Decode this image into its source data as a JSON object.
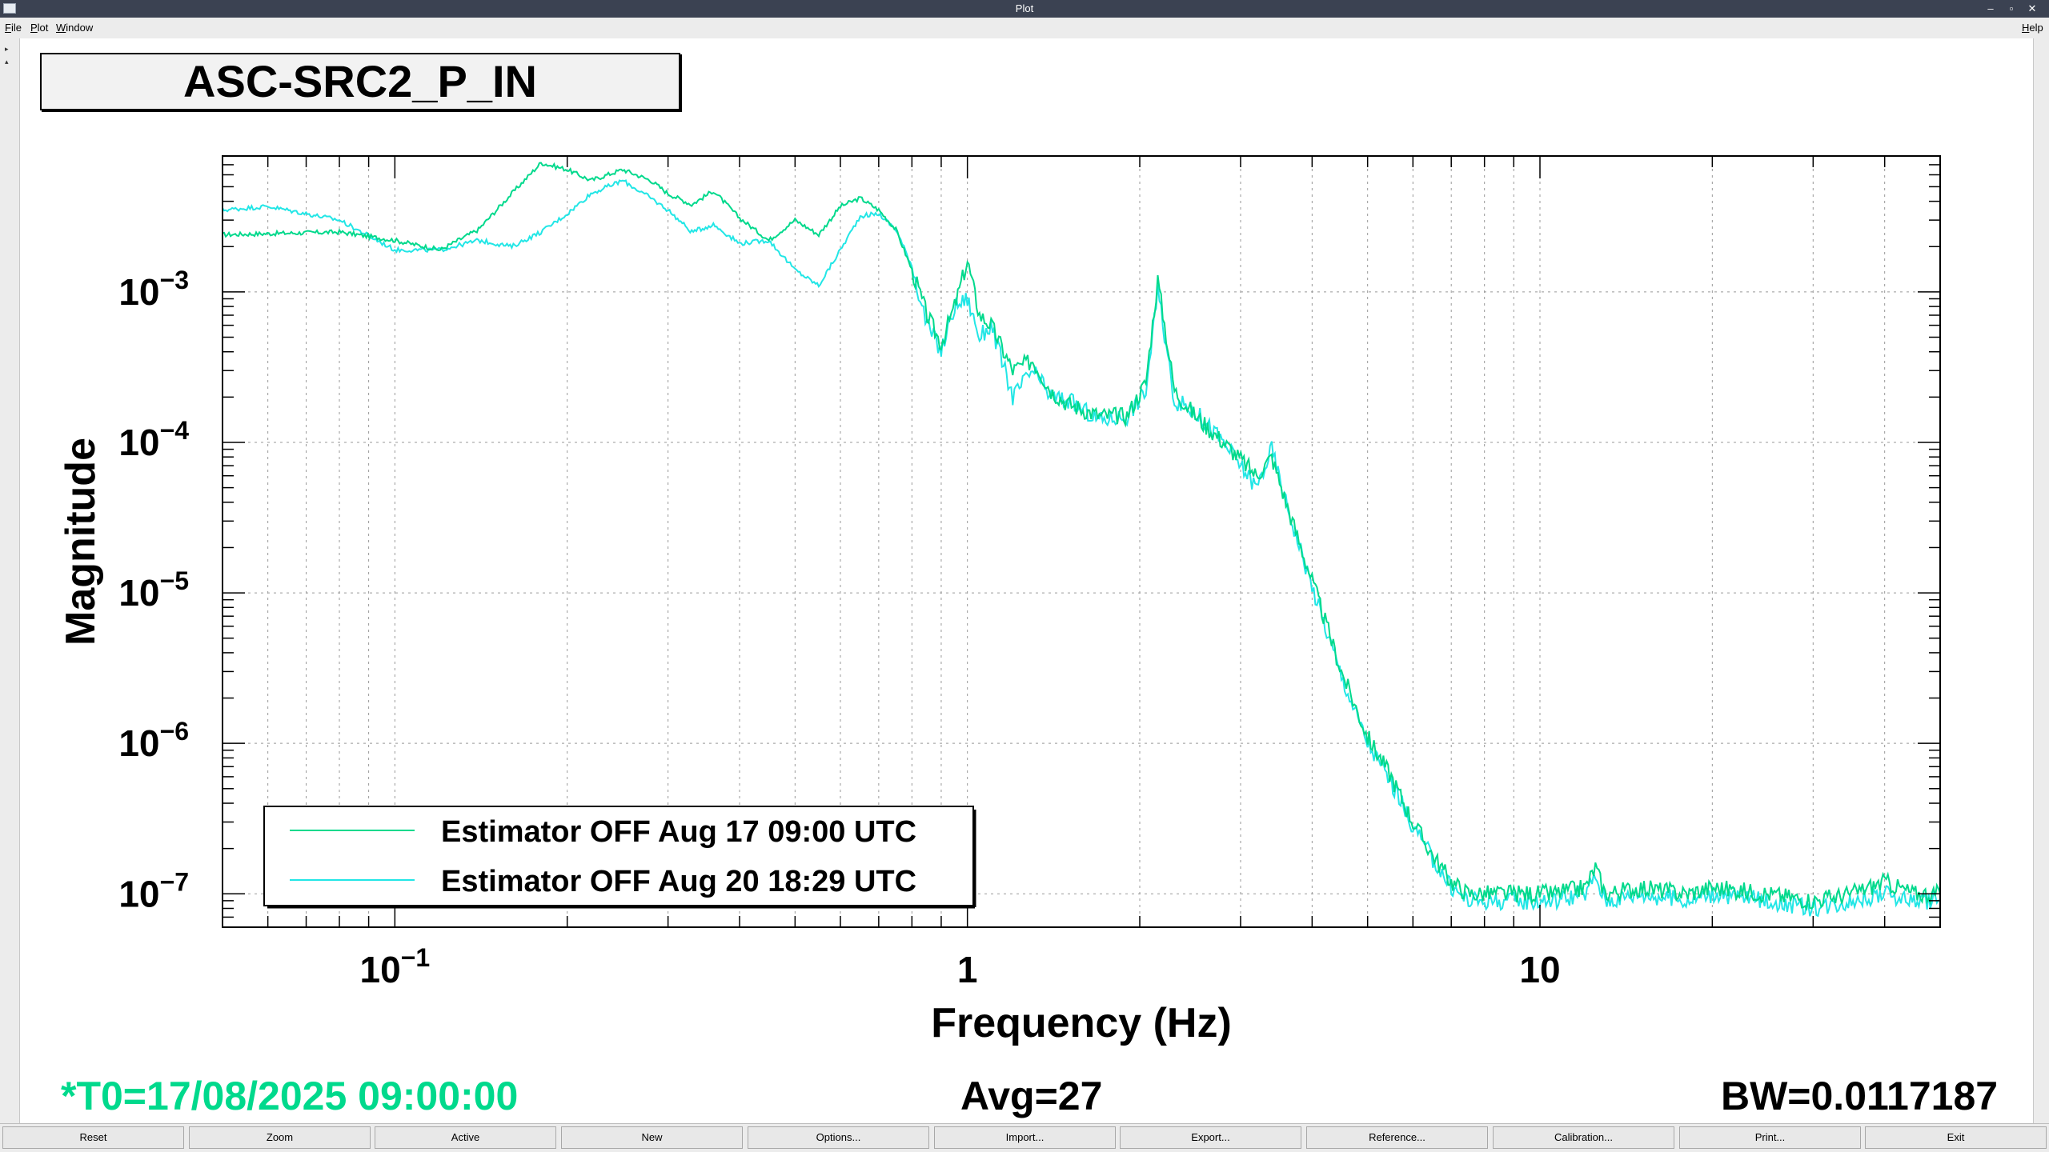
{
  "window": {
    "title": "Plot",
    "controls": [
      "–",
      "▫",
      "✕"
    ]
  },
  "menu": {
    "left": [
      "File",
      "Plot",
      "Window"
    ],
    "right": "Help"
  },
  "plot": {
    "title": "ASC-SRC2_P_IN",
    "t0": "*T0=17/08/2025 09:00:00",
    "avg": "Avg=27",
    "bw": "BW=0.0117187"
  },
  "colors": {
    "series1": "#00d98c",
    "series2": "#22e6e6",
    "t0_text": "#00d98c"
  },
  "buttons": [
    "Reset",
    "Zoom",
    "Active",
    "New",
    "Options...",
    "Import...",
    "Export...",
    "Reference...",
    "Calibration...",
    "Print...",
    "Exit"
  ],
  "chart_data": {
    "type": "line",
    "title": "ASC-SRC2_P_IN",
    "xlabel": "Frequency (Hz)",
    "ylabel": "Magnitude",
    "xscale": "log",
    "yscale": "log",
    "xlim": [
      0.05,
      50
    ],
    "ylim": [
      6e-08,
      0.008
    ],
    "grid": true,
    "legend_position": "bottom-left",
    "xticks": [
      {
        "value": 0.1,
        "base": "10",
        "exp": "−1"
      },
      {
        "value": 1,
        "base": "1",
        "exp": ""
      },
      {
        "value": 10,
        "base": "10",
        "exp": ""
      }
    ],
    "yticks": [
      {
        "value": 0.001,
        "base": "10",
        "exp": "−3"
      },
      {
        "value": 0.0001,
        "base": "10",
        "exp": "−4"
      },
      {
        "value": 1e-05,
        "base": "10",
        "exp": "−5"
      },
      {
        "value": 1e-06,
        "base": "10",
        "exp": "−6"
      },
      {
        "value": 1e-07,
        "base": "10",
        "exp": "−7"
      }
    ],
    "series": [
      {
        "name": "Estimator OFF Aug 17 09:00 UTC",
        "color": "#00d98c",
        "x": [
          0.05,
          0.08,
          0.1,
          0.12,
          0.14,
          0.16,
          0.18,
          0.2,
          0.22,
          0.25,
          0.28,
          0.3,
          0.33,
          0.36,
          0.4,
          0.45,
          0.5,
          0.55,
          0.6,
          0.65,
          0.7,
          0.75,
          0.8,
          0.85,
          0.9,
          0.95,
          1.0,
          1.05,
          1.1,
          1.2,
          1.3,
          1.4,
          1.5,
          1.7,
          1.9,
          2.05,
          2.15,
          2.3,
          2.5,
          2.8,
          3.2,
          3.4,
          3.6,
          4.0,
          4.5,
          5.0,
          5.5,
          6.0,
          6.5,
          7.0,
          7.5,
          8.0,
          9.0,
          9.8,
          10.5,
          12.0,
          12.5,
          13.0,
          15.0,
          18.0,
          20.0,
          25.0,
          30.0,
          35.0,
          40.0,
          45.0,
          50.0
        ],
        "y": [
          0.0024,
          0.0025,
          0.0022,
          0.0019,
          0.0026,
          0.0045,
          0.0072,
          0.0065,
          0.0055,
          0.0065,
          0.0055,
          0.0045,
          0.0038,
          0.0047,
          0.0031,
          0.0022,
          0.003,
          0.0024,
          0.0037,
          0.0042,
          0.0035,
          0.0026,
          0.0014,
          0.0007,
          0.00045,
          0.0008,
          0.0016,
          0.0007,
          0.0006,
          0.0003,
          0.00035,
          0.00022,
          0.00018,
          0.00015,
          0.00015,
          0.00025,
          0.0012,
          0.00022,
          0.00015,
          0.0001,
          6e-05,
          8e-05,
          4e-05,
          1.2e-05,
          3e-06,
          1.1e-06,
          6e-07,
          3e-07,
          1.8e-07,
          1.2e-07,
          1e-07,
          1e-07,
          1e-07,
          1e-07,
          1e-07,
          1.1e-07,
          1.5e-07,
          1e-07,
          1.1e-07,
          1e-07,
          1.1e-07,
          1e-07,
          9e-08,
          1e-07,
          1.2e-07,
          1e-07,
          1e-07
        ]
      },
      {
        "name": "Estimator OFF Aug 20 18:29 UTC",
        "color": "#22e6e6",
        "x": [
          0.05,
          0.06,
          0.08,
          0.1,
          0.12,
          0.14,
          0.16,
          0.18,
          0.2,
          0.22,
          0.25,
          0.28,
          0.3,
          0.33,
          0.36,
          0.4,
          0.45,
          0.5,
          0.55,
          0.6,
          0.65,
          0.7,
          0.75,
          0.8,
          0.85,
          0.9,
          0.95,
          1.0,
          1.05,
          1.1,
          1.2,
          1.3,
          1.4,
          1.5,
          1.7,
          1.9,
          2.05,
          2.15,
          2.3,
          2.5,
          2.8,
          3.2,
          3.4,
          3.6,
          4.0,
          4.5,
          5.0,
          5.5,
          6.0,
          6.5,
          7.0,
          7.5,
          8.0,
          9.0,
          9.8,
          10.5,
          12.0,
          12.5,
          13.0,
          15.0,
          18.0,
          20.0,
          25.0,
          30.0,
          35.0,
          40.0,
          45.0,
          50.0
        ],
        "y": [
          0.0035,
          0.0037,
          0.003,
          0.0019,
          0.0019,
          0.0022,
          0.002,
          0.0025,
          0.0033,
          0.0045,
          0.0055,
          0.0042,
          0.0035,
          0.0025,
          0.0028,
          0.0021,
          0.0022,
          0.0014,
          0.0011,
          0.0019,
          0.0032,
          0.0033,
          0.0026,
          0.0015,
          0.0006,
          0.0004,
          0.0008,
          0.0009,
          0.0005,
          0.0006,
          0.0002,
          0.0003,
          0.0002,
          0.00019,
          0.00014,
          0.00015,
          0.00022,
          0.001,
          0.00019,
          0.00016,
          0.0001,
          5e-05,
          9e-05,
          4e-05,
          1.1e-05,
          2.8e-06,
          1e-06,
          5.5e-07,
          2.8e-07,
          1.7e-07,
          1.1e-07,
          9e-08,
          9e-08,
          9e-08,
          9e-08,
          9e-08,
          1e-07,
          1.3e-07,
          9e-08,
          1e-07,
          9e-08,
          1e-07,
          9e-08,
          8e-08,
          9e-08,
          1e-07,
          9e-08,
          9e-08
        ]
      }
    ]
  }
}
